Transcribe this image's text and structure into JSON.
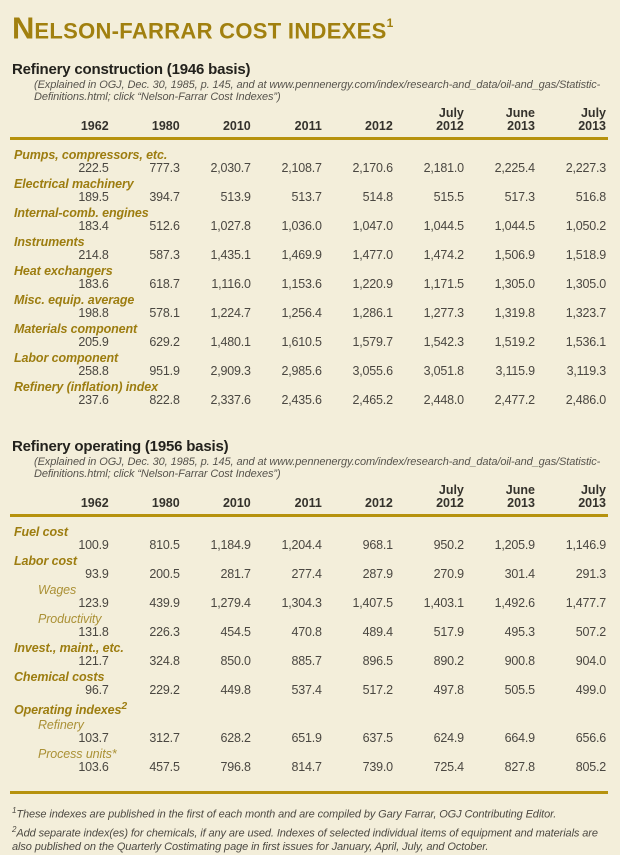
{
  "colors": {
    "background": "#f3eeda",
    "title_gold": "#a1800f",
    "rule_gold": "#b6920d",
    "row_label_gold": "#9d7d10",
    "sub_label_gold": "#ab9136",
    "number_gray": "#4a4741"
  },
  "title": {
    "first": "N",
    "rest": "ELSON-FARRAR COST INDEXES",
    "sup": "1"
  },
  "sections": [
    {
      "heading": "Refinery construction (1946 basis)",
      "note": "(Explained in OGJ, Dec. 30, 1985, p. 145, and at www.pennenergy.com/index/research-and_data/oil-and_gas/Statistic-Definitions.html; click “Nelson-Farrar Cost Indexes”)",
      "columns": [
        {
          "top": "",
          "year": "1962"
        },
        {
          "top": "",
          "year": "1980"
        },
        {
          "top": "",
          "year": "2010"
        },
        {
          "top": "",
          "year": "2011"
        },
        {
          "top": "",
          "year": "2012"
        },
        {
          "top": "July",
          "year": "2012"
        },
        {
          "top": "June",
          "year": "2013"
        },
        {
          "top": "July",
          "year": "2013"
        }
      ],
      "rows": [
        {
          "label": "Pumps, compressors, etc.",
          "style": "main",
          "values": [
            "222.5",
            "777.3",
            "2,030.7",
            "2,108.7",
            "2,170.6",
            "2,181.0",
            "2,225.4",
            "2,227.3"
          ]
        },
        {
          "label": "Electrical machinery",
          "style": "main",
          "values": [
            "189.5",
            "394.7",
            "513.9",
            "513.7",
            "514.8",
            "515.5",
            "517.3",
            "516.8"
          ]
        },
        {
          "label": "Internal-comb. engines",
          "style": "main",
          "values": [
            "183.4",
            "512.6",
            "1,027.8",
            "1,036.0",
            "1,047.0",
            "1,044.5",
            "1,044.5",
            "1,050.2"
          ]
        },
        {
          "label": "Instruments",
          "style": "main",
          "values": [
            "214.8",
            "587.3",
            "1,435.1",
            "1,469.9",
            "1,477.0",
            "1,474.2",
            "1,506.9",
            "1,518.9"
          ]
        },
        {
          "label": "Heat exchangers",
          "style": "main",
          "values": [
            "183.6",
            "618.7",
            "1,116.0",
            "1,153.6",
            "1,220.9",
            "1,171.5",
            "1,305.0",
            "1,305.0"
          ]
        },
        {
          "label": "Misc. equip. average",
          "style": "main",
          "values": [
            "198.8",
            "578.1",
            "1,224.7",
            "1,256.4",
            "1,286.1",
            "1,277.3",
            "1,319.8",
            "1,323.7"
          ]
        },
        {
          "label": "Materials component",
          "style": "main",
          "values": [
            "205.9",
            "629.2",
            "1,480.1",
            "1,610.5",
            "1,579.7",
            "1,542.3",
            "1,519.2",
            "1,536.1"
          ]
        },
        {
          "label": "Labor component",
          "style": "main",
          "values": [
            "258.8",
            "951.9",
            "2,909.3",
            "2,985.6",
            "3,055.6",
            "3,051.8",
            "3,115.9",
            "3,119.3"
          ]
        },
        {
          "label": "Refinery (inflation) index",
          "style": "main",
          "values": [
            "237.6",
            "822.8",
            "2,337.6",
            "2,435.6",
            "2,465.2",
            "2,448.0",
            "2,477.2",
            "2,486.0"
          ]
        }
      ]
    },
    {
      "heading": "Refinery operating (1956 basis)",
      "note": "(Explained in OGJ, Dec. 30, 1985, p. 145, and at www.pennenergy.com/index/research-and_data/oil-and_gas/Statistic-Definitions.html; click “Nelson-Farrar Cost Indexes”)",
      "columns": [
        {
          "top": "",
          "year": "1962"
        },
        {
          "top": "",
          "year": "1980"
        },
        {
          "top": "",
          "year": "2010"
        },
        {
          "top": "",
          "year": "2011"
        },
        {
          "top": "",
          "year": "2012"
        },
        {
          "top": "July",
          "year": "2012"
        },
        {
          "top": "June",
          "year": "2013"
        },
        {
          "top": "July",
          "year": "2013"
        }
      ],
      "rows": [
        {
          "label": "Fuel cost",
          "style": "main",
          "values": [
            "100.9",
            "810.5",
            "1,184.9",
            "1,204.4",
            "968.1",
            "950.2",
            "1,205.9",
            "1,146.9"
          ]
        },
        {
          "label": "Labor cost",
          "style": "main",
          "values": [
            "93.9",
            "200.5",
            "281.7",
            "277.4",
            "287.9",
            "270.9",
            "301.4",
            "291.3"
          ]
        },
        {
          "label": "Wages",
          "style": "sub",
          "values": [
            "123.9",
            "439.9",
            "1,279.4",
            "1,304.3",
            "1,407.5",
            "1,403.1",
            "1,492.6",
            "1,477.7"
          ]
        },
        {
          "label": "Productivity",
          "style": "sub",
          "values": [
            "131.8",
            "226.3",
            "454.5",
            "470.8",
            "489.4",
            "517.9",
            "495.3",
            "507.2"
          ]
        },
        {
          "label": "Invest., maint., etc.",
          "style": "main",
          "values": [
            "121.7",
            "324.8",
            "850.0",
            "885.7",
            "896.5",
            "890.2",
            "900.8",
            "904.0"
          ]
        },
        {
          "label": "Chemical costs",
          "style": "main",
          "values": [
            "96.7",
            "229.2",
            "449.8",
            "537.4",
            "517.2",
            "497.8",
            "505.5",
            "499.0"
          ]
        },
        {
          "label": "Operating indexes",
          "sup": "2",
          "style": "main",
          "values": null
        },
        {
          "label": "Refinery",
          "style": "sub",
          "values": [
            "103.7",
            "312.7",
            "628.2",
            "651.9",
            "637.5",
            "624.9",
            "664.9",
            "656.6"
          ]
        },
        {
          "label": "Process units*",
          "style": "sub",
          "values": [
            "103.6",
            "457.5",
            "796.8",
            "814.7",
            "739.0",
            "725.4",
            "827.8",
            "805.2"
          ]
        }
      ]
    }
  ],
  "footnotes": [
    {
      "sup": "1",
      "text": "These indexes are published in the first of each month and are compiled by Gary Farrar, OGJ Contributing Editor."
    },
    {
      "sup": "2",
      "text": "Add separate index(es) for chemicals, if any are used. Indexes of selected individual items of equipment and materials are also published on the Quarterly Costimating page in first issues for January, April, July, and October."
    }
  ]
}
